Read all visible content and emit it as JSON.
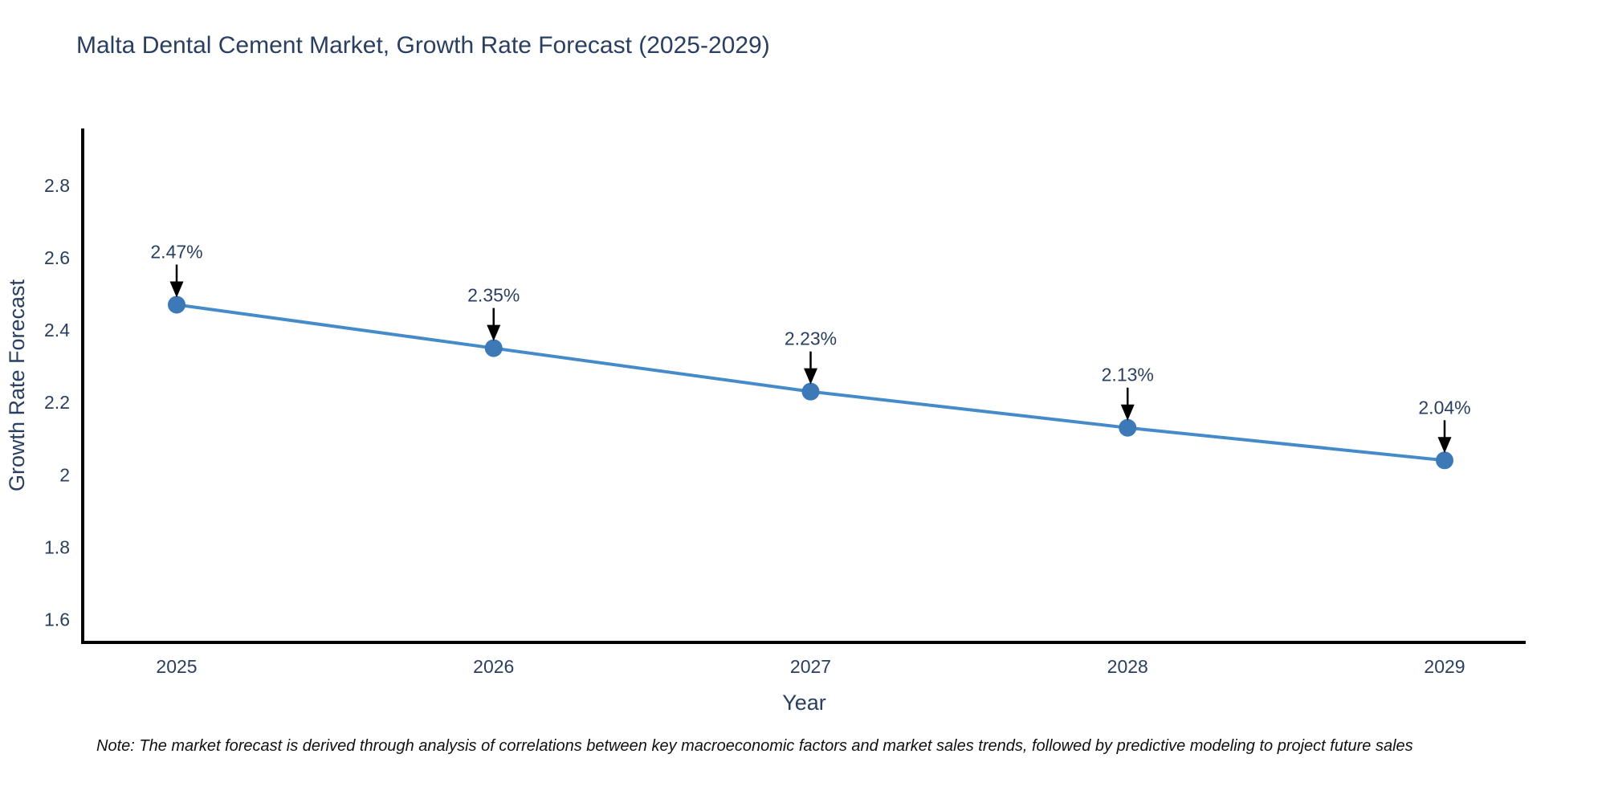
{
  "title": "Malta Dental Cement Market, Growth Rate Forecast (2025-2029)",
  "note": "Note: The market forecast is derived through analysis of correlations between key macroeconomic factors and market sales trends, followed by predictive modeling to project future sales",
  "chart_data": {
    "type": "line",
    "title": "Malta Dental Cement Market, Growth Rate Forecast (2025-2029)",
    "x": [
      2025,
      2026,
      2027,
      2028,
      2029
    ],
    "values": [
      2.47,
      2.35,
      2.23,
      2.13,
      2.04
    ],
    "point_labels": [
      "2.47%",
      "2.35%",
      "2.23%",
      "2.13%",
      "2.04%"
    ],
    "xtick_labels": [
      "2025",
      "2026",
      "2027",
      "2028",
      "2029"
    ],
    "ytick_values": [
      1.6,
      1.8,
      2.0,
      2.2,
      2.4,
      2.6,
      2.8
    ],
    "ytick_labels": [
      "1.6",
      "1.8",
      "2",
      "2.2",
      "2.4",
      "2.6",
      "2.8"
    ],
    "xlabel": "Year",
    "ylabel": "Growth Rate Forecast",
    "ylim": [
      1.537,
      2.957
    ],
    "grid": false,
    "legend_position": "none",
    "annotation_style": "arrow-down-to-point",
    "colors": {
      "line": "#468bc9",
      "marker": "#3c79b6",
      "arrow": "#000000",
      "axis_line": "#000000",
      "text": "#2a3f5f",
      "note_text": "#111111",
      "background": "#ffffff"
    }
  }
}
